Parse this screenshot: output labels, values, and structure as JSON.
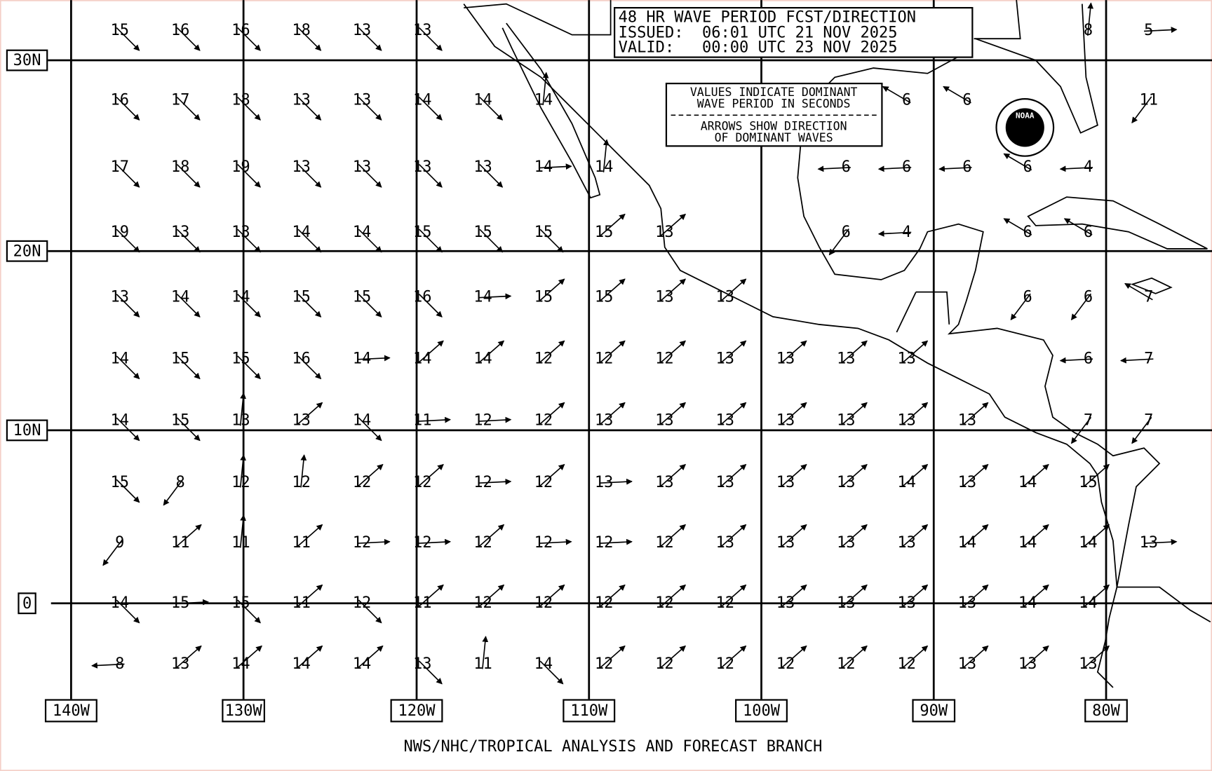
{
  "header": {
    "lines": [
      "48 HR WAVE PERIOD FCST/DIRECTION",
      "ISSUED:  06:01 UTC 21 NOV 2025",
      "VALID:   00:00 UTC 23 NOV 2025"
    ]
  },
  "legend": {
    "lines": [
      "VALUES INDICATE DOMINANT",
      "WAVE PERIOD IN SECONDS",
      "ARROWS SHOW DIRECTION",
      "OF DOMINANT WAVES"
    ]
  },
  "logo": "NOAA",
  "lat_labels": [
    "30N",
    "20N",
    "10N",
    "0"
  ],
  "lon_labels": [
    "140W",
    "130W",
    "120W",
    "110W",
    "100W",
    "90W",
    "80W"
  ],
  "footer": "NWS/NHC/TROPICAL ANALYSIS AND FORECAST BRANCH",
  "wave_periods": [
    [
      15,
      16,
      16,
      18,
      13,
      13,
      null,
      null,
      null,
      null,
      null,
      null,
      null,
      null,
      null,
      null,
      8,
      5
    ],
    [
      16,
      17,
      18,
      13,
      13,
      14,
      14,
      14,
      null,
      null,
      null,
      null,
      null,
      6,
      6,
      null,
      null,
      11
    ],
    [
      17,
      18,
      19,
      13,
      13,
      13,
      13,
      14,
      14,
      null,
      null,
      null,
      6,
      6,
      6,
      6,
      4,
      null
    ],
    [
      19,
      13,
      13,
      14,
      14,
      15,
      15,
      15,
      15,
      13,
      null,
      null,
      6,
      4,
      null,
      6,
      6,
      null
    ],
    [
      13,
      14,
      14,
      15,
      15,
      16,
      14,
      15,
      15,
      13,
      13,
      null,
      null,
      null,
      null,
      6,
      6,
      7
    ],
    [
      14,
      15,
      15,
      16,
      14,
      14,
      14,
      12,
      12,
      12,
      13,
      13,
      13,
      13,
      null,
      null,
      6,
      7
    ],
    [
      14,
      15,
      13,
      13,
      14,
      11,
      12,
      12,
      13,
      13,
      13,
      13,
      13,
      13,
      13,
      null,
      7,
      7
    ],
    [
      15,
      8,
      12,
      12,
      12,
      12,
      12,
      12,
      13,
      13,
      13,
      13,
      13,
      14,
      13,
      14,
      15,
      null
    ],
    [
      9,
      11,
      11,
      11,
      12,
      12,
      12,
      12,
      12,
      12,
      13,
      13,
      13,
      13,
      14,
      14,
      14,
      13
    ],
    [
      14,
      15,
      15,
      11,
      12,
      11,
      12,
      12,
      12,
      12,
      12,
      13,
      13,
      13,
      13,
      14,
      14,
      null
    ],
    [
      8,
      13,
      14,
      14,
      14,
      13,
      11,
      14,
      12,
      12,
      12,
      12,
      12,
      12,
      13,
      13,
      13,
      null
    ]
  ]
}
